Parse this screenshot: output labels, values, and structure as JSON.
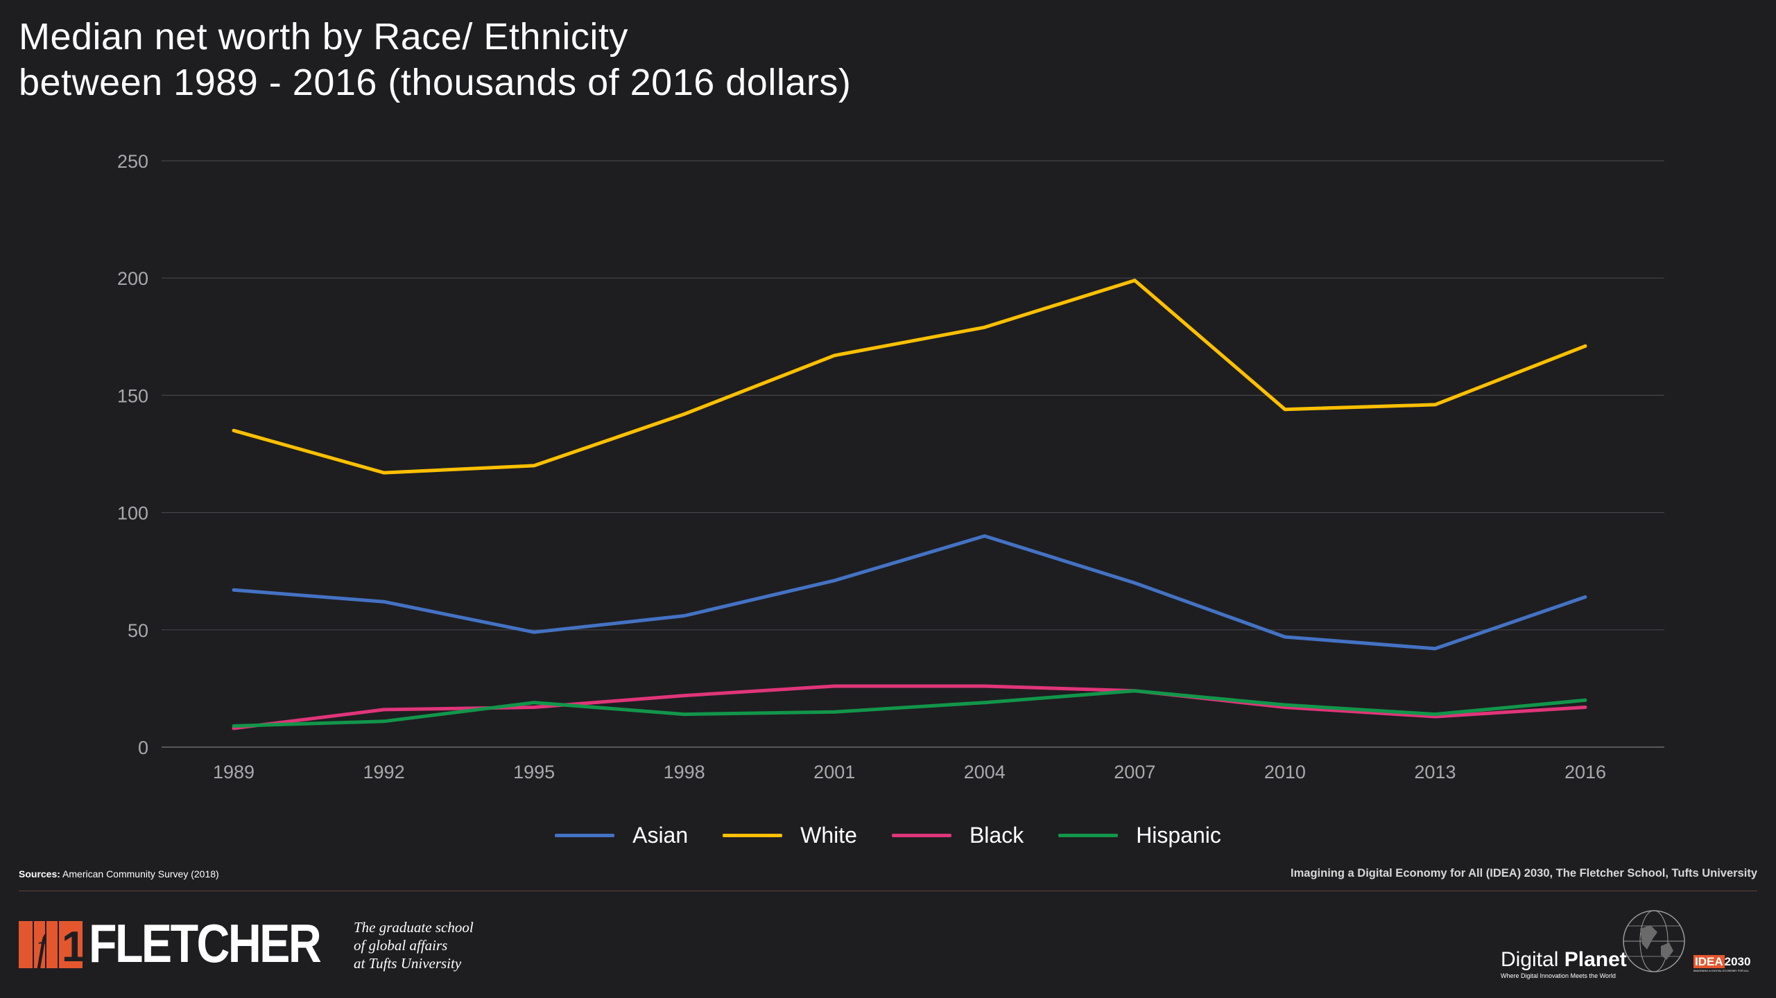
{
  "title_line1": "Median net worth by Race/ Ethnicity",
  "title_line2": "between 1989 - 2016  (thousands of 2016 dollars)",
  "chart_data": {
    "type": "line",
    "x": [
      "1989",
      "1992",
      "1995",
      "1998",
      "2001",
      "2004",
      "2007",
      "2010",
      "2013",
      "2016"
    ],
    "ylim": [
      0,
      250
    ],
    "yticks": [
      "0",
      "50",
      "100",
      "150",
      "200",
      "250"
    ],
    "grid": true,
    "legend_position": "bottom-center",
    "series": [
      {
        "name": "Asian",
        "color": "#4472c4",
        "values": [
          67,
          62,
          49,
          56,
          71,
          90,
          70,
          47,
          42,
          64
        ]
      },
      {
        "name": "White",
        "color": "#ffc000",
        "values": [
          135,
          117,
          120,
          142,
          167,
          179,
          199,
          144,
          146,
          171
        ]
      },
      {
        "name": "Black",
        "color": "#e0357a",
        "values": [
          8,
          16,
          17,
          22,
          26,
          26,
          24,
          17,
          13,
          17
        ]
      },
      {
        "name": "Hispanic",
        "color": "#12964a",
        "values": [
          9,
          11,
          19,
          14,
          15,
          19,
          24,
          18,
          14,
          20
        ]
      }
    ]
  },
  "sources_label": "Sources:",
  "sources_text": "American Community Survey (2018)",
  "credit": "Imagining a Digital Economy for All (IDEA) 2030, The Fletcher School, Tufts University",
  "fletcher_word": "FLETCHER",
  "tagline": [
    "The graduate school",
    "of global affairs",
    "at Tufts University"
  ],
  "dp_light": "Digital",
  "dp_bold": "Planet",
  "dp_sub": "Where Digital Innovation Meets the World",
  "idea_box": "IDEA",
  "idea_num": "2030",
  "idea_sub": "IMAGINING A DIGITAL ECONOMY FOR ALL",
  "brand_orange": "#e4572e"
}
